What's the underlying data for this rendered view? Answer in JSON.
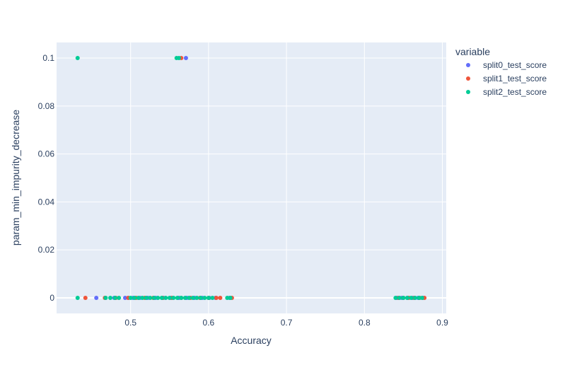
{
  "chart_data": {
    "type": "scatter",
    "title": "",
    "xlabel": "Accuracy",
    "ylabel": "param_min_impurity_decrease",
    "xlim": [
      0.405,
      0.905
    ],
    "ylim": [
      -0.0065,
      0.1065
    ],
    "x_ticks": [
      0.5,
      0.6,
      0.7,
      0.8,
      0.9
    ],
    "x_tick_labels": [
      "0.5",
      "0.6",
      "0.7",
      "0.8",
      "0.9"
    ],
    "y_ticks": [
      0,
      0.02,
      0.04,
      0.06,
      0.08,
      0.1
    ],
    "y_tick_labels": [
      "0",
      "0.02",
      "0.04",
      "0.06",
      "0.08",
      "0.1"
    ],
    "grid": true,
    "legend": {
      "title": "variable",
      "placement": "right"
    },
    "series": [
      {
        "name": "split0_test_score",
        "color": "#636efa",
        "points": [
          {
            "x": 0.456,
            "y": 0
          },
          {
            "x": 0.479,
            "y": 0
          },
          {
            "x": 0.493,
            "y": 0
          },
          {
            "x": 0.497,
            "y": 0
          },
          {
            "x": 0.503,
            "y": 0
          },
          {
            "x": 0.512,
            "y": 0
          },
          {
            "x": 0.522,
            "y": 0
          },
          {
            "x": 0.532,
            "y": 0
          },
          {
            "x": 0.542,
            "y": 0
          },
          {
            "x": 0.552,
            "y": 0
          },
          {
            "x": 0.562,
            "y": 0
          },
          {
            "x": 0.572,
            "y": 0
          },
          {
            "x": 0.582,
            "y": 0
          },
          {
            "x": 0.592,
            "y": 0
          },
          {
            "x": 0.601,
            "y": 0
          },
          {
            "x": 0.609,
            "y": 0
          },
          {
            "x": 0.627,
            "y": 0
          },
          {
            "x": 0.842,
            "y": 0
          },
          {
            "x": 0.848,
            "y": 0
          },
          {
            "x": 0.855,
            "y": 0
          },
          {
            "x": 0.862,
            "y": 0
          },
          {
            "x": 0.869,
            "y": 0
          },
          {
            "x": 0.875,
            "y": 0
          },
          {
            "x": 0.571,
            "y": 0.1
          }
        ]
      },
      {
        "name": "split1_test_score",
        "color": "#ef553b",
        "points": [
          {
            "x": 0.442,
            "y": 0
          },
          {
            "x": 0.467,
            "y": 0
          },
          {
            "x": 0.481,
            "y": 0
          },
          {
            "x": 0.497,
            "y": 0
          },
          {
            "x": 0.507,
            "y": 0
          },
          {
            "x": 0.518,
            "y": 0
          },
          {
            "x": 0.529,
            "y": 0
          },
          {
            "x": 0.541,
            "y": 0
          },
          {
            "x": 0.553,
            "y": 0
          },
          {
            "x": 0.565,
            "y": 0
          },
          {
            "x": 0.577,
            "y": 0
          },
          {
            "x": 0.589,
            "y": 0
          },
          {
            "x": 0.6,
            "y": 0
          },
          {
            "x": 0.61,
            "y": 0
          },
          {
            "x": 0.615,
            "y": 0
          },
          {
            "x": 0.63,
            "y": 0
          },
          {
            "x": 0.844,
            "y": 0
          },
          {
            "x": 0.85,
            "y": 0
          },
          {
            "x": 0.857,
            "y": 0
          },
          {
            "x": 0.864,
            "y": 0
          },
          {
            "x": 0.871,
            "y": 0
          },
          {
            "x": 0.877,
            "y": 0
          },
          {
            "x": 0.565,
            "y": 0.1
          }
        ]
      },
      {
        "name": "split2_test_score",
        "color": "#00cc96",
        "points": [
          {
            "x": 0.432,
            "y": 0
          },
          {
            "x": 0.468,
            "y": 0
          },
          {
            "x": 0.474,
            "y": 0
          },
          {
            "x": 0.48,
            "y": 0
          },
          {
            "x": 0.485,
            "y": 0
          },
          {
            "x": 0.5,
            "y": 0
          },
          {
            "x": 0.505,
            "y": 0
          },
          {
            "x": 0.51,
            "y": 0
          },
          {
            "x": 0.515,
            "y": 0
          },
          {
            "x": 0.52,
            "y": 0
          },
          {
            "x": 0.525,
            "y": 0
          },
          {
            "x": 0.53,
            "y": 0
          },
          {
            "x": 0.535,
            "y": 0
          },
          {
            "x": 0.54,
            "y": 0
          },
          {
            "x": 0.545,
            "y": 0
          },
          {
            "x": 0.55,
            "y": 0
          },
          {
            "x": 0.555,
            "y": 0
          },
          {
            "x": 0.56,
            "y": 0
          },
          {
            "x": 0.565,
            "y": 0
          },
          {
            "x": 0.57,
            "y": 0
          },
          {
            "x": 0.575,
            "y": 0
          },
          {
            "x": 0.58,
            "y": 0
          },
          {
            "x": 0.585,
            "y": 0
          },
          {
            "x": 0.59,
            "y": 0
          },
          {
            "x": 0.595,
            "y": 0
          },
          {
            "x": 0.6,
            "y": 0
          },
          {
            "x": 0.605,
            "y": 0
          },
          {
            "x": 0.624,
            "y": 0
          },
          {
            "x": 0.628,
            "y": 0
          },
          {
            "x": 0.84,
            "y": 0
          },
          {
            "x": 0.845,
            "y": 0
          },
          {
            "x": 0.85,
            "y": 0
          },
          {
            "x": 0.855,
            "y": 0
          },
          {
            "x": 0.86,
            "y": 0
          },
          {
            "x": 0.865,
            "y": 0
          },
          {
            "x": 0.87,
            "y": 0
          },
          {
            "x": 0.874,
            "y": 0
          },
          {
            "x": 0.432,
            "y": 0.1
          },
          {
            "x": 0.559,
            "y": 0.1
          },
          {
            "x": 0.562,
            "y": 0.1
          }
        ]
      }
    ]
  }
}
